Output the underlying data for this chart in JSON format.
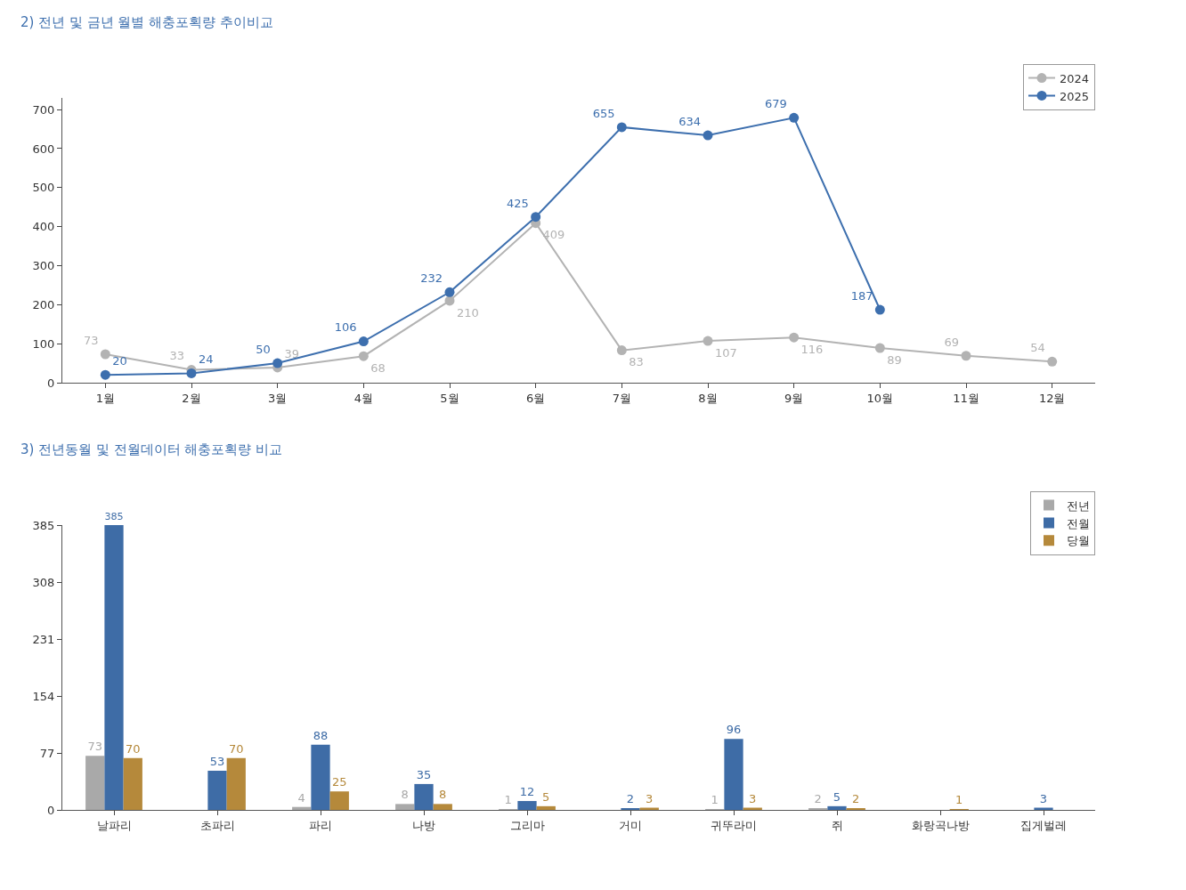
{
  "chart_data": [
    {
      "type": "line",
      "title": "2) 전년 및 금년 월별 해충포획량 추이비교",
      "categories": [
        "1월",
        "2월",
        "3월",
        "4월",
        "5월",
        "6월",
        "7월",
        "8월",
        "9월",
        "10월",
        "11월",
        "12월"
      ],
      "series": [
        {
          "name": "2024",
          "color": "#b3b3b3",
          "values": [
            73,
            33,
            39,
            68,
            210,
            409,
            83,
            107,
            116,
            89,
            69,
            54
          ]
        },
        {
          "name": "2025",
          "color": "#3d6fae",
          "values": [
            20,
            24,
            50,
            106,
            232,
            425,
            655,
            634,
            679,
            187,
            null,
            null
          ]
        }
      ],
      "ylim": [
        0,
        730
      ],
      "yticks": [
        0,
        100,
        200,
        300,
        400,
        500,
        600,
        700
      ],
      "grid": false,
      "legend": "top right",
      "marker": "circle",
      "line_style": "solid",
      "data_labels": true
    },
    {
      "type": "bar",
      "title": "3) 전년동월 및 전월데이터 해충포획량 비교",
      "categories": [
        "날파리",
        "초파리",
        "파리",
        "나방",
        "그리마",
        "거미",
        "귀뚜라미",
        "쥐",
        "화랑곡나방",
        "집게벌레"
      ],
      "series": [
        {
          "name": "전년",
          "color": "#a9a9a9",
          "values": [
            73,
            null,
            4,
            8,
            1,
            null,
            1,
            2,
            null,
            null
          ]
        },
        {
          "name": "전월",
          "color": "#3e6ca6",
          "values": [
            385,
            53,
            88,
            35,
            12,
            2,
            96,
            5,
            null,
            3
          ]
        },
        {
          "name": "당월",
          "color": "#b5893b",
          "values": [
            70,
            70,
            25,
            8,
            5,
            3,
            3,
            2,
            1,
            null
          ]
        }
      ],
      "ylim": [
        0,
        385
      ],
      "yticks": [
        0,
        77,
        154,
        231,
        308,
        385
      ],
      "grid": false,
      "legend": "top right",
      "data_labels": true
    }
  ]
}
